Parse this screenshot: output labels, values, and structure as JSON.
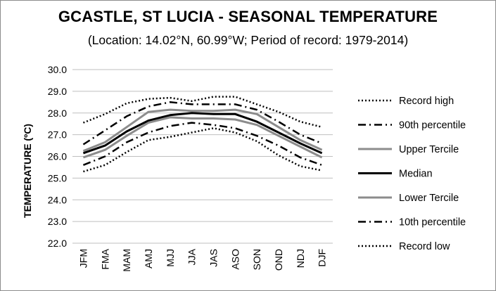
{
  "chart_data": {
    "type": "line",
    "title": "GCASTLE, ST LUCIA - SEASONAL TEMPERATURE",
    "subtitle": "(Location: 14.02°N, 60.99°W; Period of record: 1979-2014)",
    "xlabel": "",
    "ylabel": "TEMPERATURE (ºC)",
    "ylim": [
      22.0,
      30.0
    ],
    "ytick_step": 1.0,
    "yticks": [
      "22.0",
      "23.0",
      "24.0",
      "25.0",
      "26.0",
      "27.0",
      "28.0",
      "29.0",
      "30.0"
    ],
    "grid": true,
    "legend_position": "right",
    "categories": [
      "JFM",
      "FMA",
      "MAM",
      "AMJ",
      "MJJ",
      "JJA",
      "JAS",
      "ASO",
      "SON",
      "OND",
      "NDJ",
      "DJF"
    ],
    "series": [
      {
        "name": "Record high",
        "style": "dotted",
        "color": "#000000",
        "values": [
          27.55,
          27.95,
          28.45,
          28.65,
          28.7,
          28.55,
          28.75,
          28.75,
          28.4,
          28.05,
          27.6,
          27.35
        ]
      },
      {
        "name": "90th percentile",
        "style": "dashdot",
        "color": "#000000",
        "values": [
          26.55,
          27.2,
          27.85,
          28.3,
          28.5,
          28.4,
          28.4,
          28.4,
          28.15,
          27.6,
          27.0,
          26.6
        ]
      },
      {
        "name": "Upper Tercile",
        "style": "solid",
        "color": "#8c8c8c",
        "values": [
          26.25,
          26.65,
          27.35,
          28.05,
          28.15,
          28.1,
          28.1,
          28.15,
          27.95,
          27.35,
          26.75,
          26.3
        ]
      },
      {
        "name": "Median",
        "style": "solid",
        "color": "#000000",
        "values": [
          26.15,
          26.5,
          27.15,
          27.65,
          27.9,
          28.0,
          27.95,
          27.95,
          27.6,
          27.1,
          26.6,
          26.15
        ]
      },
      {
        "name": "Lower Tercile",
        "style": "solid",
        "color": "#8c8c8c",
        "values": [
          25.95,
          26.3,
          26.95,
          27.55,
          27.8,
          27.75,
          27.75,
          27.7,
          27.45,
          26.95,
          26.45,
          25.95
        ]
      },
      {
        "name": "10th percentile",
        "style": "dashdot",
        "color": "#000000",
        "values": [
          25.6,
          26.0,
          26.65,
          27.1,
          27.4,
          27.55,
          27.45,
          27.3,
          26.95,
          26.5,
          25.95,
          25.6
        ]
      },
      {
        "name": "Record low",
        "style": "dotted",
        "color": "#000000",
        "values": [
          25.3,
          25.6,
          26.2,
          26.75,
          26.9,
          27.1,
          27.3,
          27.1,
          26.7,
          26.05,
          25.55,
          25.35
        ]
      }
    ]
  }
}
